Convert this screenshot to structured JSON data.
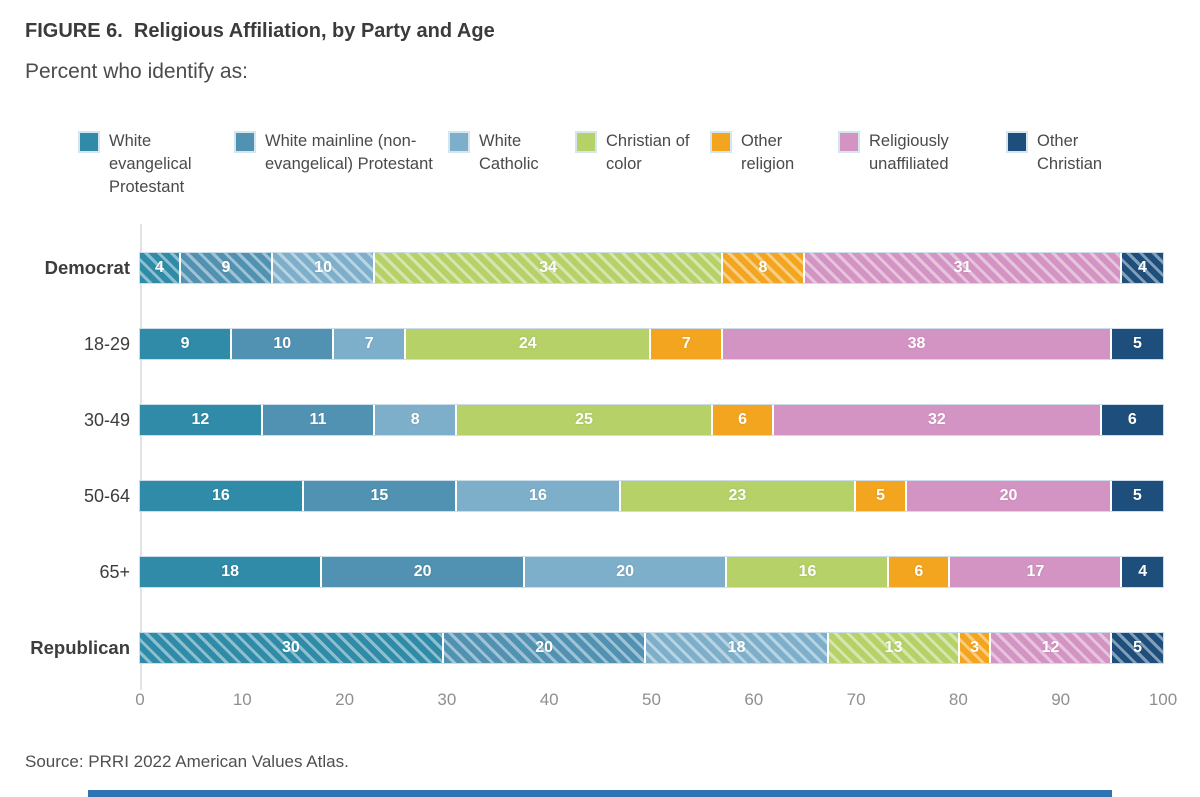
{
  "figure": {
    "title": "FIGURE 6.  Religious Affiliation, by Party and Age",
    "subtitle": "Percent who identify as:",
    "source": "Source: PRRI 2022 American Values Atlas.",
    "divider_color": "#2e74b5"
  },
  "chart_data": {
    "type": "bar",
    "orientation": "horizontal",
    "stacked": true,
    "title": "FIGURE 6. Religious Affiliation, by Party and Age",
    "subtitle": "Percent who identify as:",
    "categories": [
      "Democrat",
      "18-29",
      "30-49",
      "50-64",
      "65+",
      "Republican"
    ],
    "party_categories": [
      "Democrat",
      "Republican"
    ],
    "hatched_categories": [
      "Democrat",
      "Republican"
    ],
    "series": [
      {
        "name": "White evangelical Protestant",
        "color": "#2f8ba7",
        "values": [
          4,
          9,
          12,
          16,
          18,
          30
        ]
      },
      {
        "name": "White mainline (non-evangelical) Protestant",
        "color": "#5191b1",
        "values": [
          9,
          10,
          11,
          15,
          20,
          20
        ]
      },
      {
        "name": "White Catholic",
        "color": "#7eafca",
        "values": [
          10,
          7,
          8,
          16,
          20,
          18
        ]
      },
      {
        "name": "Christian of color",
        "color": "#b5d168",
        "values": [
          34,
          24,
          25,
          23,
          16,
          13
        ]
      },
      {
        "name": "Other religion",
        "color": "#f3a51f",
        "values": [
          8,
          7,
          6,
          5,
          6,
          3
        ]
      },
      {
        "name": "Religiously unaffiliated",
        "color": "#d394c3",
        "values": [
          31,
          38,
          32,
          20,
          17,
          12
        ]
      },
      {
        "name": "Other Christian",
        "color": "#1e4e7c",
        "values": [
          4,
          5,
          6,
          5,
          4,
          5
        ]
      }
    ],
    "xlim": [
      0,
      100
    ],
    "x_ticks": [
      0,
      10,
      20,
      30,
      40,
      50,
      60,
      70,
      80,
      90,
      100
    ],
    "legend_position": "top",
    "grid": false,
    "value_labels": "inside-white-bold"
  }
}
